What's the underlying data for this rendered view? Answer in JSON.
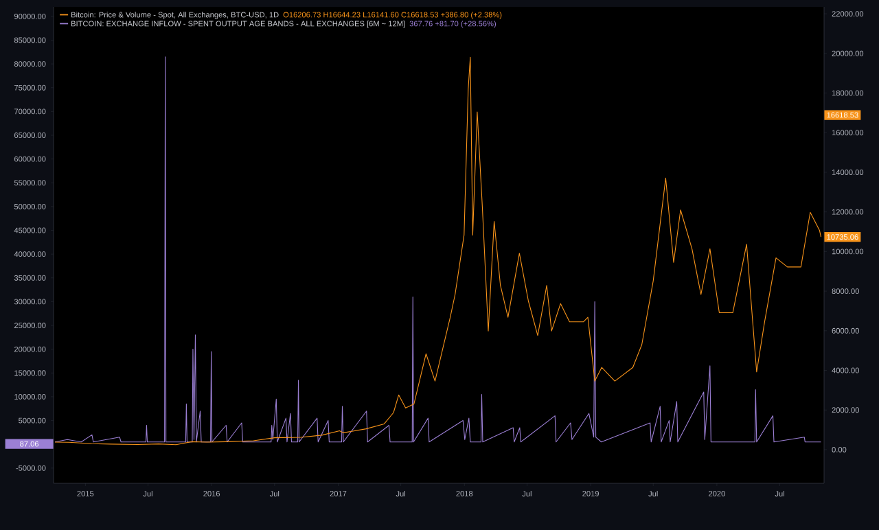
{
  "chart_data": {
    "type": "line",
    "legend": "top left",
    "xlim": [
      "2014-10-01",
      "2020-11-06"
    ],
    "xticks": [
      {
        "value": "2015-01-01",
        "label": "2015"
      },
      {
        "value": "2015-07-01",
        "label": "Jul"
      },
      {
        "value": "2016-01-01",
        "label": "2016"
      },
      {
        "value": "2016-07-01",
        "label": "Jul"
      },
      {
        "value": "2017-01-01",
        "label": "2017"
      },
      {
        "value": "2017-07-01",
        "label": "Jul"
      },
      {
        "value": "2018-01-01",
        "label": "2018"
      },
      {
        "value": "2018-07-01",
        "label": "Jul"
      },
      {
        "value": "2019-01-01",
        "label": "2019"
      },
      {
        "value": "2019-07-01",
        "label": "Jul"
      },
      {
        "value": "2020-01-01",
        "label": "2020"
      },
      {
        "value": "2020-07-01",
        "label": "Jul"
      }
    ],
    "ylim": [
      -8200,
      92000
    ],
    "yticks": [
      {
        "value": -5000,
        "label": "-5000.00"
      },
      {
        "value": 5000,
        "label": "5000.00"
      },
      {
        "value": 10000,
        "label": "10000.00"
      },
      {
        "value": 15000,
        "label": "15000.00"
      },
      {
        "value": 20000,
        "label": "20000.00"
      },
      {
        "value": 25000,
        "label": "25000.00"
      },
      {
        "value": 30000,
        "label": "30000.00"
      },
      {
        "value": 35000,
        "label": "35000.00"
      },
      {
        "value": 40000,
        "label": "40000.00"
      },
      {
        "value": 45000,
        "label": "45000.00"
      },
      {
        "value": 50000,
        "label": "50000.00"
      },
      {
        "value": 55000,
        "label": "55000.00"
      },
      {
        "value": 60000,
        "label": "60000.00"
      },
      {
        "value": 65000,
        "label": "65000.00"
      },
      {
        "value": 70000,
        "label": "70000.00"
      },
      {
        "value": 75000,
        "label": "75000.00"
      },
      {
        "value": 80000,
        "label": "80000.00"
      },
      {
        "value": 85000,
        "label": "85000.00"
      },
      {
        "value": 90000,
        "label": "90000.00"
      }
    ],
    "y2lim": [
      -1700,
      22350
    ],
    "y2ticks": [
      {
        "value": 0,
        "label": "0.00"
      },
      {
        "value": 2000,
        "label": "2000.00"
      },
      {
        "value": 4000,
        "label": "4000.00"
      },
      {
        "value": 6000,
        "label": "6000.00"
      },
      {
        "value": 8000,
        "label": "8000.00"
      },
      {
        "value": 10000,
        "label": "10000.00"
      },
      {
        "value": 12000,
        "label": "12000.00"
      },
      {
        "value": 14000,
        "label": "14000.00"
      },
      {
        "value": 16000,
        "label": "16000.00"
      },
      {
        "value": 18000,
        "label": "18000.00"
      },
      {
        "value": 20000,
        "label": "20000.00"
      },
      {
        "value": 22000,
        "label": "22000.00"
      }
    ],
    "series": [
      {
        "name": "Bitcoin: Price & Volume - Spot, All Exchanges, BTC-USD, 1D",
        "color": "#f7931a",
        "axis": "y2",
        "x": [
          "2014-10-05",
          "2014-11-15",
          "2015-01-19",
          "2015-03-15",
          "2015-06-01",
          "2015-08-01",
          "2015-09-20",
          "2015-11-05",
          "2015-12-18",
          "2016-02-15",
          "2016-05-01",
          "2016-07-01",
          "2016-09-15",
          "2016-11-15",
          "2017-01-05",
          "2017-01-16",
          "2017-03-23",
          "2017-05-14",
          "2017-06-10",
          "2017-06-25",
          "2017-07-15",
          "2017-08-08",
          "2017-09-12",
          "2017-10-08",
          "2017-11-21",
          "2017-12-05",
          "2017-12-31",
          "2018-01-12",
          "2018-01-18",
          "2018-01-25",
          "2018-02-07",
          "2018-02-22",
          "2018-03-11",
          "2018-03-28",
          "2018-04-15",
          "2018-05-07",
          "2018-06-09",
          "2018-07-05",
          "2018-08-01",
          "2018-08-27",
          "2018-09-10",
          "2018-10-06",
          "2018-11-01",
          "2018-12-11",
          "2018-12-24",
          "2019-01-13",
          "2019-02-02",
          "2019-03-12",
          "2019-05-03",
          "2019-05-29",
          "2019-07-01",
          "2019-08-06",
          "2019-08-29",
          "2019-09-18",
          "2019-10-21",
          "2019-11-16",
          "2019-12-12",
          "2020-01-08",
          "2020-02-16",
          "2020-03-27",
          "2020-04-25",
          "2020-05-18",
          "2020-06-20",
          "2020-07-23",
          "2020-08-31",
          "2020-09-27",
          "2020-10-24",
          "2020-10-28"
        ],
        "values": [
          380,
          370,
          300,
          280,
          260,
          290,
          250,
          400,
          380,
          400,
          450,
          600,
          620,
          730,
          950,
          850,
          1050,
          1300,
          1870,
          2760,
          2100,
          2300,
          4840,
          3460,
          6680,
          7830,
          10830,
          18200,
          19810,
          10830,
          17050,
          12210,
          5990,
          11520,
          8300,
          6680,
          9910,
          7500,
          5760,
          8290,
          5990,
          7370,
          6450,
          6450,
          6680,
          3460,
          4150,
          3460,
          4150,
          5300,
          8520,
          13710,
          9450,
          12100,
          10140,
          7830,
          10140,
          6910,
          6910,
          10370,
          3920,
          6450,
          9680,
          9220,
          9220,
          11980,
          11060,
          10735
        ]
      },
      {
        "name": "BITCOIN: EXCHANGE INFLOW - SPENT OUTPUT AGE BANDS - ALL EXCHANGES [6M ~ 12M]",
        "color": "#9b7fd4",
        "x": [
          "2014-10-05",
          "2014-11-10",
          "2014-12-20",
          "2015-01-20",
          "2015-01-24",
          "2015-04-10",
          "2015-04-14",
          "2015-06-25",
          "2015-06-27",
          "2015-06-29",
          "2015-08-18",
          "2015-08-20",
          "2015-08-22",
          "2015-10-18",
          "2015-10-20",
          "2015-10-22",
          "2015-11-06",
          "2015-11-08",
          "2015-11-11",
          "2015-11-15",
          "2015-11-18",
          "2015-11-29",
          "2015-12-02",
          "2015-12-29",
          "2015-12-31",
          "2016-01-02",
          "2016-02-12",
          "2016-02-15",
          "2016-03-28",
          "2016-03-31",
          "2016-06-21",
          "2016-06-23",
          "2016-06-26",
          "2016-07-06",
          "2016-07-09",
          "2016-08-03",
          "2016-08-06",
          "2016-08-16",
          "2016-08-19",
          "2016-09-06",
          "2016-09-08",
          "2016-09-10",
          "2016-11-01",
          "2016-11-04",
          "2016-12-03",
          "2016-12-06",
          "2017-01-11",
          "2017-01-13",
          "2017-01-16",
          "2017-03-24",
          "2017-03-27",
          "2017-05-28",
          "2017-05-31",
          "2017-08-03",
          "2017-08-05",
          "2017-08-07",
          "2017-09-18",
          "2017-09-21",
          "2017-12-28",
          "2018-01-02",
          "2018-01-14",
          "2018-01-18",
          "2018-02-18",
          "2018-02-20",
          "2018-02-23",
          "2018-05-22",
          "2018-05-25",
          "2018-06-10",
          "2018-06-13",
          "2018-09-20",
          "2018-09-23",
          "2018-11-04",
          "2018-11-08",
          "2018-12-27",
          "2019-01-10",
          "2019-01-13",
          "2019-01-16",
          "2019-02-01",
          "2019-06-22",
          "2019-06-25",
          "2019-07-21",
          "2019-07-24",
          "2019-08-16",
          "2019-08-19",
          "2019-09-07",
          "2019-09-10",
          "2019-11-24",
          "2019-11-27",
          "2019-12-12",
          "2019-12-15",
          "2020-04-20",
          "2020-04-22",
          "2020-04-25",
          "2020-06-11",
          "2020-06-14",
          "2020-09-10",
          "2020-09-12",
          "2020-10-28"
        ],
        "values": [
          500,
          1000,
          500,
          2000,
          500,
          1500,
          500,
          500,
          4000,
          500,
          500,
          81500,
          500,
          500,
          8500,
          500,
          500,
          20000,
          1000,
          23000,
          500,
          7000,
          500,
          500,
          19500,
          500,
          4000,
          500,
          4500,
          500,
          500,
          4000,
          1000,
          9500,
          500,
          5500,
          500,
          6500,
          500,
          500,
          13500,
          500,
          5500,
          500,
          5000,
          500,
          500,
          8000,
          500,
          7000,
          500,
          4000,
          500,
          500,
          31000,
          500,
          5500,
          500,
          5000,
          1000,
          5500,
          500,
          500,
          10500,
          500,
          3500,
          500,
          3500,
          500,
          6000,
          500,
          4500,
          1000,
          6500,
          1500,
          30000,
          1500,
          500,
          4500,
          500,
          8000,
          500,
          5000,
          500,
          9000,
          500,
          11000,
          1000,
          16500,
          500,
          500,
          11500,
          500,
          6000,
          500,
          1500,
          500,
          500
        ]
      }
    ],
    "annotations": [
      "O16206.73 H16644.23 L16141.60 C16618.53 +386.80 (+2.38%)",
      "367.76 +81.70 (+28.56%)",
      {
        "text": "87.06",
        "x": "2014-10-01",
        "y": 87.06
      },
      "16618.53",
      "10735.06"
    ]
  }
}
